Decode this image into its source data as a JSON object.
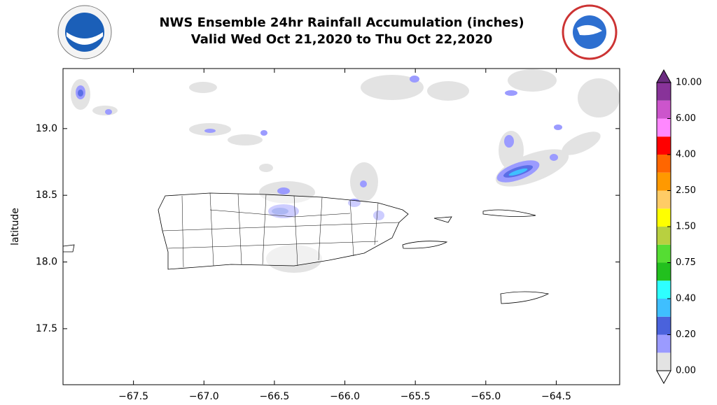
{
  "title": [
    "NWS Ensemble 24hr Rainfall Accumulation (inches)",
    "Valid Wed Oct 21,2020 to Thu Oct 22,2020"
  ],
  "map": {
    "ylabel": "latitude",
    "xlim": [
      -68.0,
      -64.05
    ],
    "ylim": [
      17.08,
      19.45
    ],
    "xticks": [
      {
        "value": -67.5,
        "label": "−67.5"
      },
      {
        "value": -67.0,
        "label": "−67.0"
      },
      {
        "value": -66.5,
        "label": "−66.5"
      },
      {
        "value": -66.0,
        "label": "−66.0"
      },
      {
        "value": -65.5,
        "label": "−65.5"
      },
      {
        "value": -65.0,
        "label": "−65.0"
      },
      {
        "value": -64.5,
        "label": "−64.5"
      }
    ],
    "yticks": [
      {
        "value": 17.5,
        "label": "17.5"
      },
      {
        "value": 18.0,
        "label": "18.0"
      },
      {
        "value": 18.5,
        "label": "18.5"
      },
      {
        "value": 19.0,
        "label": "19.0"
      }
    ]
  },
  "colorbar": {
    "bounds": [
      0,
      0.1,
      0.2,
      0.3,
      0.4,
      0.5,
      0.75,
      1.0,
      1.5,
      2.0,
      2.5,
      3.0,
      4.0,
      5.0,
      6.0,
      8.0,
      10.0
    ],
    "colors": [
      "#e3e3e3",
      "#9b9bff",
      "#4a62dc",
      "#3fbfff",
      "#2effff",
      "#22c01e",
      "#55dd33",
      "#b8d040",
      "#ffff00",
      "#ffcc66",
      "#ff9900",
      "#ff6600",
      "#ff0000",
      "#ff88ff",
      "#cc55cc",
      "#883399"
    ],
    "ticks": [
      {
        "value": 0,
        "label": "0.00"
      },
      {
        "value": 0.2,
        "label": "0.20"
      },
      {
        "value": 0.4,
        "label": "0.40"
      },
      {
        "value": 0.75,
        "label": "0.75"
      },
      {
        "value": 1.5,
        "label": "1.50"
      },
      {
        "value": 2.5,
        "label": "2.50"
      },
      {
        "value": 4.0,
        "label": "4.00"
      },
      {
        "value": 6.0,
        "label": "6.00"
      },
      {
        "value": 10.0,
        "label": "10.00"
      }
    ]
  }
}
